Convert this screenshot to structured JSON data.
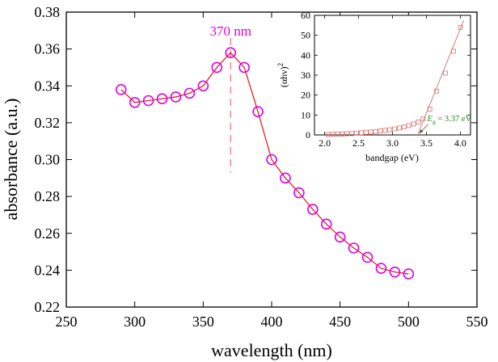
{
  "chart_data": [
    {
      "type": "line",
      "xlabel": "wavelength (nm)",
      "ylabel": "absorbance (a.u.)",
      "xlim": [
        250,
        550
      ],
      "ylim": [
        0.22,
        0.38
      ],
      "xticks": [
        250,
        300,
        350,
        400,
        450,
        500,
        550
      ],
      "yticks": [
        0.22,
        0.24,
        0.26,
        0.28,
        0.3,
        0.32,
        0.34,
        0.36,
        0.38
      ],
      "xtick_labels": [
        "250",
        "300",
        "350",
        "400",
        "450",
        "500",
        "550"
      ],
      "ytick_labels": [
        "0.22",
        "0.24",
        "0.26",
        "0.28",
        "0.30",
        "0.32",
        "0.34",
        "0.36",
        "0.38"
      ],
      "series": [
        {
          "name": "absorbance",
          "x": [
            290,
            300,
            310,
            320,
            330,
            340,
            350,
            360,
            370,
            380,
            390,
            400,
            410,
            420,
            430,
            440,
            450,
            460,
            470,
            480,
            490,
            500
          ],
          "y": [
            0.338,
            0.331,
            0.332,
            0.333,
            0.334,
            0.336,
            0.34,
            0.35,
            0.358,
            0.35,
            0.326,
            0.3,
            0.29,
            0.282,
            0.273,
            0.265,
            0.258,
            0.252,
            0.247,
            0.241,
            0.239,
            0.238
          ]
        }
      ],
      "annotation": {
        "text": "370 nm",
        "x": 370,
        "y_top": 0.366,
        "y_bottom": 0.293
      },
      "colors": {
        "line": "#e0202a",
        "marker": "#e100e1",
        "annotation": "#e100e1",
        "dashed": "#f08080"
      }
    },
    {
      "type": "scatter",
      "xlabel": "bandgap (eV)",
      "ylabel": "(αhν)²",
      "xlim": [
        1.85,
        4.15
      ],
      "ylim": [
        0,
        60
      ],
      "xticks": [
        2.0,
        2.5,
        3.0,
        3.5,
        4.0
      ],
      "yticks": [
        0,
        10,
        20,
        30,
        40,
        50,
        60
      ],
      "xtick_labels": [
        "2.0",
        "2.5",
        "3.0",
        "3.5",
        "4.0"
      ],
      "ytick_labels": [
        "0",
        "10",
        "20",
        "30",
        "40",
        "50",
        "60"
      ],
      "series": [
        {
          "name": "(αhν)²",
          "x": [
            2.05,
            2.12,
            2.19,
            2.26,
            2.33,
            2.4,
            2.47,
            2.54,
            2.61,
            2.68,
            2.75,
            2.82,
            2.89,
            2.96,
            3.03,
            3.1,
            3.17,
            3.24,
            3.31,
            3.38,
            3.45,
            3.55,
            3.65,
            3.78,
            3.9,
            4.0
          ],
          "y": [
            0.2,
            0.3,
            0.4,
            0.5,
            0.6,
            0.7,
            0.9,
            1.1,
            1.3,
            1.5,
            1.7,
            2.0,
            2.3,
            2.6,
            3.0,
            3.5,
            4.0,
            4.7,
            5.5,
            6.5,
            8.0,
            13,
            22,
            31,
            42,
            54
          ]
        }
      ],
      "fit_line": {
        "x": [
          3.37,
          4.05
        ],
        "y": [
          0,
          57.5
        ]
      },
      "annotation": {
        "symbol": "E",
        "subscript": "g",
        "value": " = 3.37 eV",
        "x": 3.37
      },
      "colors": {
        "marker": "#e07070",
        "fit": "#d07070",
        "annotation": "#228822",
        "arrow": "#555555"
      }
    }
  ]
}
